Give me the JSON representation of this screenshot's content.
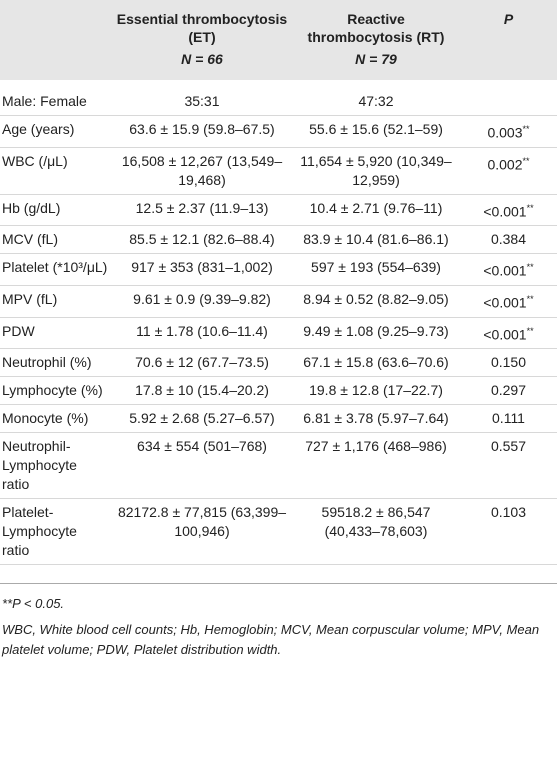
{
  "table": {
    "header": {
      "et_name": "Essential thrombocytosis (ET)",
      "et_n": "N = 66",
      "rt_name": "Reactive thrombocytosis (RT)",
      "rt_n": "N = 79",
      "p": "P"
    },
    "rows": [
      {
        "label": "Male: Female",
        "et": "35:31",
        "rt": "47:32"
      },
      {
        "label": "Age (years)",
        "et": "63.6 ± 15.9 (59.8–67.5)",
        "rt": "55.6 ± 15.6 (52.1–59)",
        "p": "0.003",
        "sig": "**"
      },
      {
        "label": "WBC (/μL)",
        "et": "16,508 ± 12,267 (13,549–19,468)",
        "rt": "11,654 ± 5,920 (10,349–12,959)",
        "p": "0.002",
        "sig": "**"
      },
      {
        "label": "Hb (g/dL)",
        "et": "12.5 ± 2.37 (11.9–13)",
        "rt": "10.4 ± 2.71 (9.76–11)",
        "p": "<0.001",
        "sig": "**"
      },
      {
        "label": "MCV (fL)",
        "et": "85.5 ± 12.1 (82.6–88.4)",
        "rt": "83.9 ± 10.4 (81.6–86.1)",
        "p": "0.384"
      },
      {
        "label": "Platelet (*10³/μL)",
        "et": "917 ± 353 (831–1,002)",
        "rt": "597 ± 193 (554–639)",
        "p": "<0.001",
        "sig": "**"
      },
      {
        "label": "MPV (fL)",
        "et": "9.61 ± 0.9 (9.39–9.82)",
        "rt": "8.94 ± 0.52 (8.82–9.05)",
        "p": "<0.001",
        "sig": "**"
      },
      {
        "label": "PDW",
        "et": "11 ± 1.78 (10.6–11.4)",
        "rt": "9.49 ± 1.08 (9.25–9.73)",
        "p": "<0.001",
        "sig": "**"
      },
      {
        "label": "Neutrophil (%)",
        "et": "70.6 ± 12 (67.7–73.5)",
        "rt": "67.1 ± 15.8 (63.6–70.6)",
        "p": "0.150"
      },
      {
        "label": "Lymphocyte (%)",
        "et": "17.8 ± 10 (15.4–20.2)",
        "rt": "19.8 ± 12.8 (17–22.7)",
        "p": "0.297"
      },
      {
        "label": "Monocyte (%)",
        "et": "5.92 ± 2.68 (5.27–6.57)",
        "rt": "6.81 ± 3.78 (5.97–7.64)",
        "p": "0.111"
      },
      {
        "label": "Neutrophil-Lymphocyte ratio",
        "et": "634 ± 554 (501–768)",
        "rt": "727 ± 1,176 (468–986)",
        "p": "0.557"
      },
      {
        "label": "Platelet-Lymphocyte ratio",
        "et": "82172.8 ± 77,815 (63,399–100,946)",
        "rt": "59518.2 ± 86,547 (40,433–78,603)",
        "p": "0.103"
      }
    ],
    "footnotes": [
      "**P < 0.05.",
      "WBC, White blood cell counts; Hb, Hemoglobin; MCV, Mean corpuscular volume; MPV, Mean platelet volume; PDW, Platelet distribution width."
    ]
  }
}
